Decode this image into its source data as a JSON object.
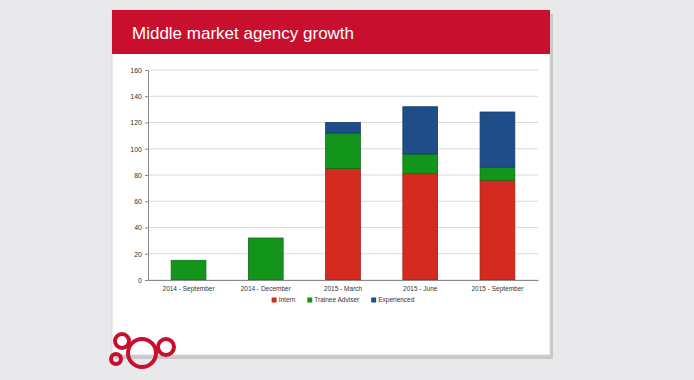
{
  "chart_data": {
    "type": "bar",
    "title": "Middle market agency growth",
    "categories": [
      "2014 - September",
      "2014 - December",
      "2015 - March",
      "2015 - June",
      "2015 - September"
    ],
    "series": [
      {
        "name": "Intern",
        "color": "#d42a20",
        "values": [
          0,
          0,
          85,
          81,
          76
        ]
      },
      {
        "name": "Trainee Adviser",
        "color": "#13951b",
        "values": [
          15,
          32,
          27,
          15,
          10
        ]
      },
      {
        "name": "Experienced",
        "color": "#1f4d8a",
        "values": [
          0,
          0,
          8,
          36,
          42
        ]
      }
    ],
    "stacked": true,
    "ylim": [
      0,
      160
    ],
    "yticks": [
      0,
      20,
      40,
      60,
      80,
      100,
      120,
      140,
      160
    ],
    "grid": true,
    "legend": "bottom"
  }
}
